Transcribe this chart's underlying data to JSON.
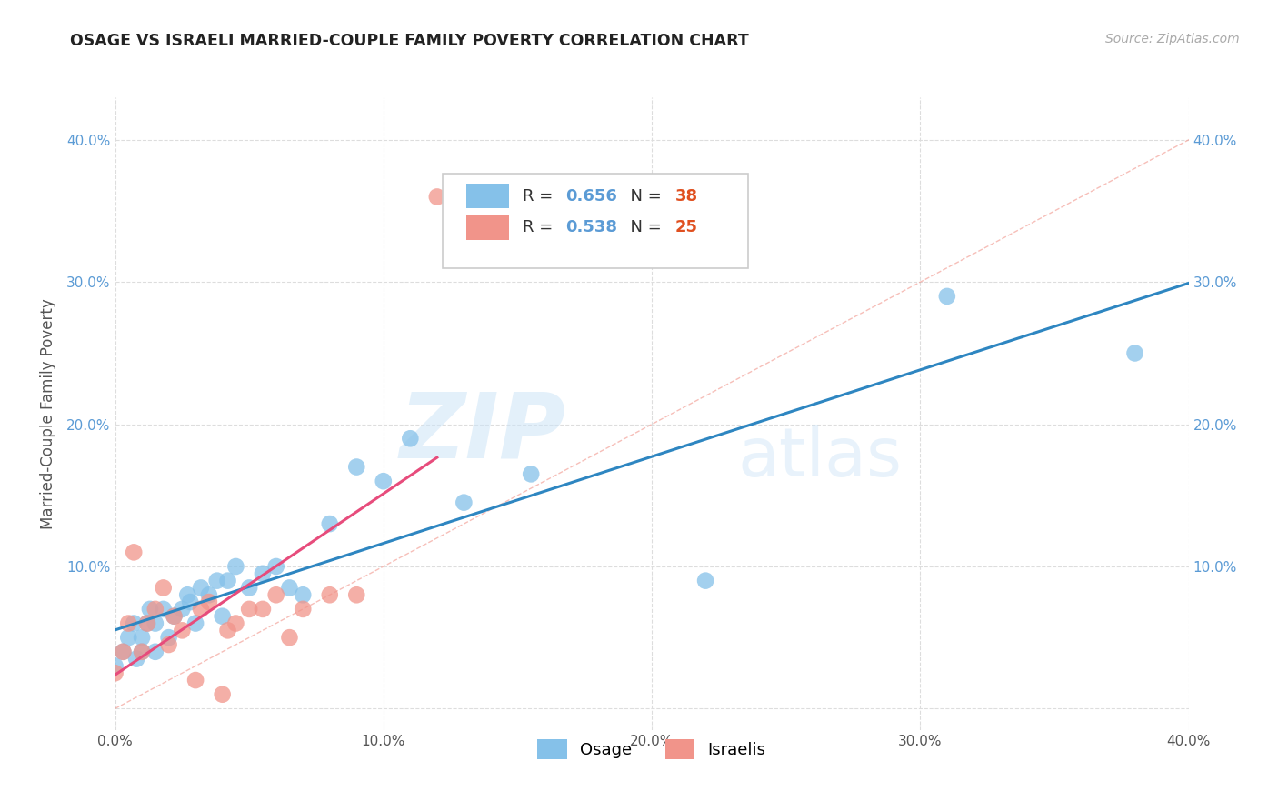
{
  "title": "OSAGE VS ISRAELI MARRIED-COUPLE FAMILY POVERTY CORRELATION CHART",
  "source": "Source: ZipAtlas.com",
  "ylabel": "Married-Couple Family Poverty",
  "xlim": [
    0.0,
    0.4
  ],
  "ylim": [
    -0.015,
    0.43
  ],
  "x_ticks": [
    0.0,
    0.1,
    0.2,
    0.3,
    0.4
  ],
  "x_tick_labels": [
    "0.0%",
    "10.0%",
    "20.0%",
    "30.0%",
    "40.0%"
  ],
  "y_ticks": [
    0.0,
    0.1,
    0.2,
    0.3,
    0.4
  ],
  "y_tick_labels": [
    "",
    "10.0%",
    "20.0%",
    "30.0%",
    "40.0%"
  ],
  "osage_color": "#85c1e9",
  "israeli_color": "#f1948a",
  "osage_R": 0.656,
  "osage_N": 38,
  "israeli_R": 0.538,
  "israeli_N": 25,
  "osage_line_color": "#2e86c1",
  "israeli_line_color": "#e74c7c",
  "diagonal_color": "#f1948a",
  "watermark_zip": "ZIP",
  "watermark_atlas": "atlas",
  "osage_x": [
    0.0,
    0.003,
    0.005,
    0.007,
    0.008,
    0.01,
    0.01,
    0.012,
    0.013,
    0.015,
    0.015,
    0.018,
    0.02,
    0.022,
    0.025,
    0.027,
    0.028,
    0.03,
    0.032,
    0.035,
    0.038,
    0.04,
    0.042,
    0.045,
    0.05,
    0.055,
    0.06,
    0.065,
    0.07,
    0.08,
    0.09,
    0.1,
    0.11,
    0.13,
    0.155,
    0.22,
    0.31,
    0.38
  ],
  "osage_y": [
    0.03,
    0.04,
    0.05,
    0.06,
    0.035,
    0.04,
    0.05,
    0.06,
    0.07,
    0.04,
    0.06,
    0.07,
    0.05,
    0.065,
    0.07,
    0.08,
    0.075,
    0.06,
    0.085,
    0.08,
    0.09,
    0.065,
    0.09,
    0.1,
    0.085,
    0.095,
    0.1,
    0.085,
    0.08,
    0.13,
    0.17,
    0.16,
    0.19,
    0.145,
    0.165,
    0.09,
    0.29,
    0.25
  ],
  "israeli_x": [
    0.0,
    0.003,
    0.005,
    0.007,
    0.01,
    0.012,
    0.015,
    0.018,
    0.02,
    0.022,
    0.025,
    0.03,
    0.032,
    0.035,
    0.04,
    0.042,
    0.045,
    0.05,
    0.055,
    0.06,
    0.065,
    0.07,
    0.08,
    0.09,
    0.12
  ],
  "israeli_y": [
    0.025,
    0.04,
    0.06,
    0.11,
    0.04,
    0.06,
    0.07,
    0.085,
    0.045,
    0.065,
    0.055,
    0.02,
    0.07,
    0.075,
    0.01,
    0.055,
    0.06,
    0.07,
    0.07,
    0.08,
    0.05,
    0.07,
    0.08,
    0.08,
    0.36
  ]
}
